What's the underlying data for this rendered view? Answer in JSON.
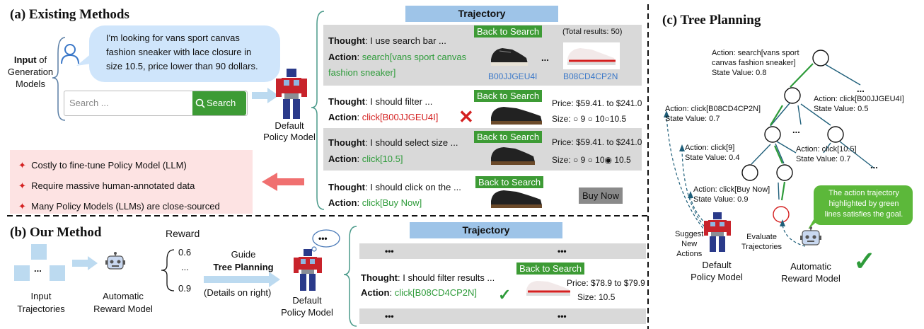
{
  "section_a": {
    "title": "(a) Existing Methods",
    "input_label": [
      "Input",
      " of",
      "Generation",
      "Models"
    ],
    "query_text": [
      "I'm looking for vans sport canvas",
      "fashion sneaker with lace closure in",
      "size 10.5, price lower than 90 dollars."
    ],
    "search_placeholder": "Search ...",
    "search_button": "Search",
    "policy_label": [
      "Default",
      "Policy Model"
    ],
    "drawbacks": [
      "Costly to fine-tune Policy Model (LLM)",
      "Require massive human-annotated data",
      "Many Policy Models (LLMs) are close-sourced"
    ],
    "trajectory": {
      "header": "Trajectory",
      "rows": [
        {
          "thought": "I  use search bar ...",
          "badge": "Back to Search",
          "action": "search[vans sport canvas",
          "action2": "fashion sneaker]",
          "extra": "(Total results: 50)",
          "ids": [
            "B00JJGEU4I",
            "B08CD4CP2N"
          ],
          "dots": "..."
        },
        {
          "thought": "I should filter  ...",
          "badge": "Back to Search",
          "action": "click[B00JJGEU4I]",
          "price": "Price: $59.41. to $241.0",
          "size": "Size:   ○ 9  ○ 10○10.5",
          "mark": "✕"
        },
        {
          "thought": "I should select size ...",
          "badge": "Back to Search",
          "action": "click[10.5]",
          "price": "Price: $59.41. to $241.0",
          "size": "Size:   ○ 9  ○ 10◉ 10.5"
        },
        {
          "thought": "I should click on the ...",
          "badge": "Back to Search",
          "action": "click[Buy Now]",
          "buy": "Buy Now"
        }
      ],
      "thought_label": "Thought",
      "action_label": "Action"
    }
  },
  "section_b": {
    "title": "(b) Our Method",
    "input_label": [
      "Input",
      "Trajectories"
    ],
    "input_dots": "...",
    "reward_model_label": [
      "Automatic",
      "Reward Model"
    ],
    "reward_label": "Reward",
    "reward_values": [
      "0.6",
      "...",
      "0.9"
    ],
    "guide_label": [
      "Guide",
      "Tree Planning",
      "(Details on right)"
    ],
    "policy_label": [
      "Default",
      "Policy Model"
    ],
    "thought_bubble": "•••",
    "trajectory": {
      "header": "Trajectory",
      "dots": "•••",
      "thought": "I should filter results ...",
      "badge": "Back to Search",
      "action": "click[B08CD4CP2N]",
      "price": "Price: $78.9 to $79.9",
      "size": "Size: 10.5",
      "mark": "✓"
    }
  },
  "section_c": {
    "title": "(c) Tree Planning",
    "nodes_text": {
      "root": [
        "Action: search[vans sport",
        "canvas fashion sneaker]",
        "State Value: 0.8"
      ],
      "n1": [
        "Action: click[B08CD4CP2N]",
        "State Value: 0.7"
      ],
      "n2": [
        "Action: click[B00JJGEU4I]",
        "State Value: 0.5"
      ],
      "n3": [
        "Action: click[9]",
        "State Value: 0.4"
      ],
      "n4": [
        "Action: click[10.5]",
        "State Value: 0.7"
      ],
      "n5": [
        "Action: click[Buy Now]",
        "State Value: 0.9"
      ]
    },
    "dots": "...",
    "suggest_label": [
      "Suggest",
      "New",
      "Actions"
    ],
    "evaluate_label": [
      "Evaluate",
      "Trajectories"
    ],
    "policy_label": [
      "Default",
      "Policy Model"
    ],
    "reward_label": [
      "Automatic",
      "Reward Model"
    ],
    "callout": [
      "The action trajectory",
      "highlighted by green",
      "lines satisfies the goal."
    ],
    "check": "✓"
  },
  "colors": {
    "green": "#2e9b3a",
    "red": "#d42020",
    "blue_header": "#9ec4e8",
    "gray_row": "#d9d9d9",
    "bubble": "#cfe5fb",
    "callout": "#5cb83a"
  }
}
